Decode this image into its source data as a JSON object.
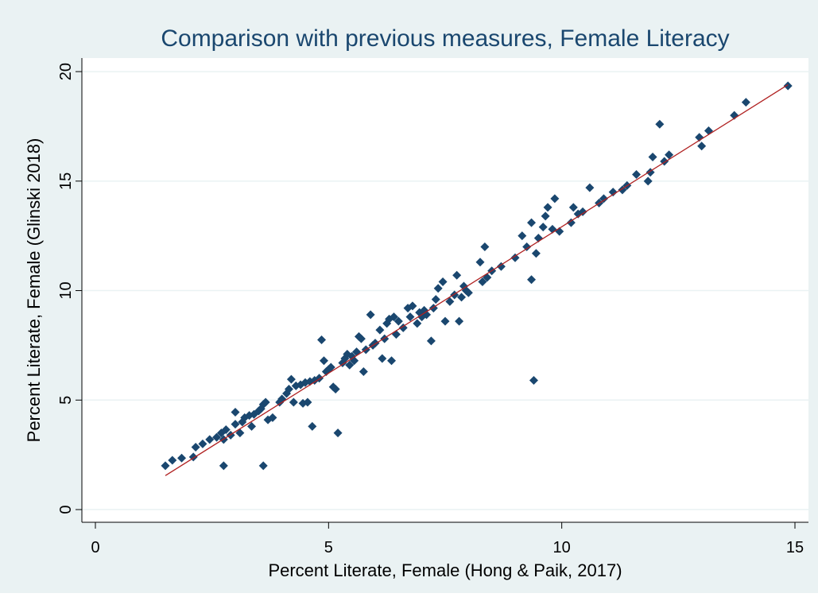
{
  "chart_data": {
    "type": "scatter",
    "title": "Comparison with previous measures, Female Literacy",
    "x_label": "Percent Literate, Female (Hong & Paik, 2017)",
    "y_label": "Percent Literate, Female (Glinski 2018)",
    "xlim": [
      -0.29,
      15.29
    ],
    "ylim": [
      -0.58,
      20.62
    ],
    "xticks": [
      0,
      5,
      10,
      15
    ],
    "yticks": [
      0,
      5,
      10,
      15,
      20
    ],
    "grid": true,
    "series": [
      {
        "color": "#1a476f",
        "x": [
          1.5,
          1.65,
          1.85,
          2.1,
          2.15,
          2.3,
          2.45,
          2.6,
          2.7,
          2.75,
          2.8,
          2.75,
          2.9,
          3.0,
          3.0,
          3.1,
          3.15,
          3.2,
          3.3,
          3.35,
          3.4,
          3.5,
          3.55,
          3.6,
          3.65,
          3.7,
          3.6,
          3.8,
          3.95,
          4.0,
          4.1,
          4.15,
          4.2,
          4.25,
          4.3,
          4.4,
          4.45,
          4.5,
          4.55,
          4.6,
          4.65,
          4.7,
          4.8,
          4.85,
          4.9,
          4.95,
          5.0,
          5.05,
          5.1,
          5.15,
          5.2,
          5.3,
          5.35,
          5.4,
          5.45,
          5.5,
          5.55,
          5.6,
          5.65,
          5.7,
          5.75,
          5.8,
          5.9,
          5.95,
          6.0,
          6.1,
          6.15,
          6.2,
          6.25,
          6.3,
          6.35,
          6.4,
          6.45,
          6.5,
          6.6,
          6.7,
          6.75,
          6.8,
          6.9,
          6.95,
          7.0,
          7.05,
          7.1,
          7.2,
          7.25,
          7.3,
          7.35,
          7.45,
          7.5,
          7.6,
          7.7,
          7.75,
          7.8,
          7.85,
          7.9,
          7.95,
          8.0,
          8.25,
          8.3,
          8.35,
          8.4,
          8.5,
          8.7,
          9.0,
          9.15,
          9.25,
          9.35,
          9.4,
          9.35,
          9.45,
          9.5,
          9.6,
          9.65,
          9.7,
          9.8,
          9.85,
          9.95,
          10.2,
          10.25,
          10.35,
          10.45,
          10.6,
          10.8,
          10.9,
          11.1,
          11.3,
          11.4,
          11.6,
          11.85,
          11.9,
          11.95,
          12.1,
          12.2,
          12.3,
          12.95,
          13.0,
          13.15,
          13.7,
          13.95,
          14.85
        ],
        "values": [
          2.0,
          2.25,
          2.35,
          2.4,
          2.85,
          3.0,
          3.2,
          3.3,
          3.5,
          3.2,
          3.65,
          2.0,
          3.4,
          4.45,
          3.9,
          3.5,
          4.0,
          4.2,
          4.3,
          3.8,
          4.35,
          4.5,
          4.6,
          4.8,
          4.9,
          4.1,
          2.0,
          4.2,
          4.9,
          5.05,
          5.3,
          5.5,
          5.95,
          4.9,
          5.65,
          5.7,
          4.85,
          5.8,
          4.9,
          5.85,
          3.8,
          5.9,
          6.0,
          7.75,
          6.8,
          6.3,
          6.4,
          6.5,
          5.6,
          5.5,
          3.5,
          6.7,
          6.9,
          7.1,
          6.6,
          7.0,
          6.8,
          7.2,
          7.9,
          7.8,
          6.3,
          7.3,
          8.9,
          7.5,
          7.6,
          8.2,
          6.9,
          7.8,
          8.5,
          8.7,
          6.8,
          8.8,
          8.0,
          8.6,
          8.3,
          9.2,
          8.8,
          9.3,
          8.5,
          9.0,
          8.8,
          9.1,
          8.9,
          7.7,
          9.2,
          9.6,
          10.1,
          10.4,
          8.6,
          9.5,
          9.8,
          10.7,
          8.6,
          9.7,
          10.2,
          10.0,
          9.9,
          11.3,
          10.4,
          12.0,
          10.6,
          10.9,
          11.1,
          11.5,
          12.5,
          12.0,
          10.5,
          5.9,
          13.1,
          11.7,
          12.4,
          12.9,
          13.4,
          13.8,
          12.8,
          14.2,
          12.7,
          13.1,
          13.8,
          13.5,
          13.6,
          14.7,
          14.0,
          14.2,
          14.5,
          14.6,
          14.8,
          15.3,
          15.0,
          15.4,
          16.1,
          17.6,
          15.9,
          16.2,
          17.0,
          16.6,
          17.3,
          18.0,
          18.6,
          19.35
        ]
      }
    ],
    "fit": {
      "color": "#b02020",
      "x": [
        1.5,
        14.85
      ],
      "values": [
        1.55,
        19.4
      ]
    }
  }
}
